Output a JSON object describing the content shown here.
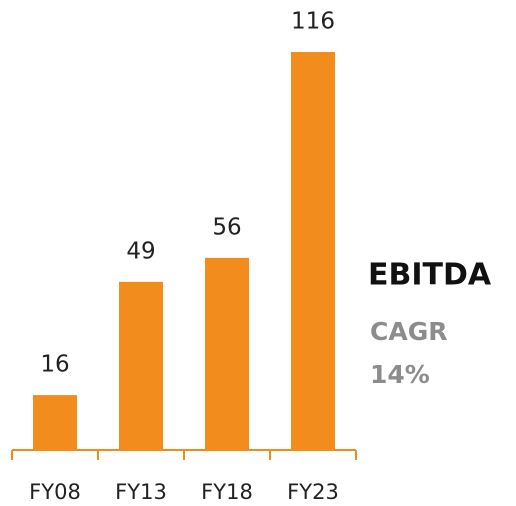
{
  "chart_data": {
    "type": "bar",
    "categories": [
      "FY08",
      "FY13",
      "FY18",
      "FY23"
    ],
    "values": [
      16,
      49,
      56,
      116
    ],
    "color": "#f28c1c",
    "annotations": [
      "EBITDA",
      "CAGR",
      "14%"
    ]
  }
}
